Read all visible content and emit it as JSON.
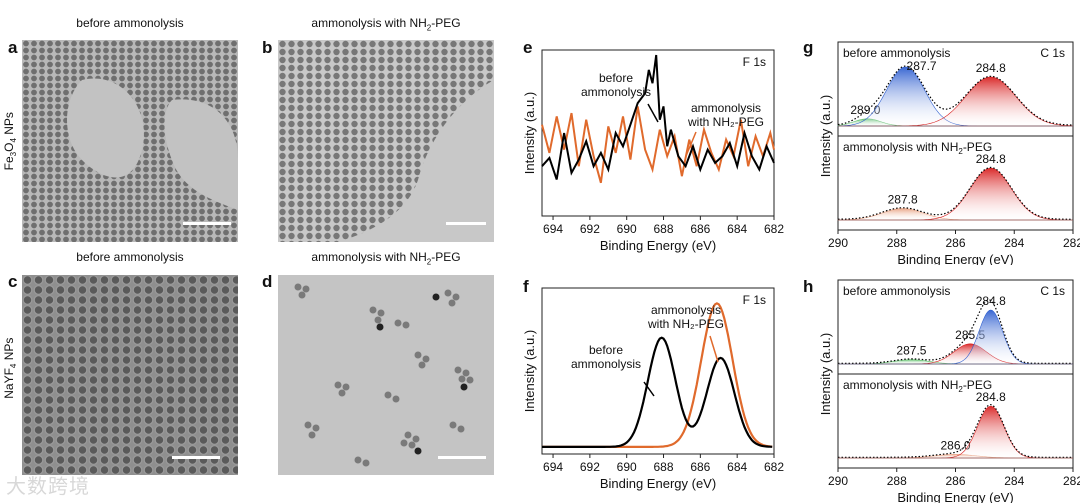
{
  "panels": {
    "a": {
      "letter": "a",
      "title": "before ammonolysis"
    },
    "b": {
      "letter": "b",
      "title_pre": "ammonolysis with NH",
      "title_sub": "2",
      "title_post": "-PEG"
    },
    "c": {
      "letter": "c",
      "title": "before ammonolysis"
    },
    "d": {
      "letter": "d",
      "title_pre": "ammonolysis with NH",
      "title_sub": "2",
      "title_post": "-PEG"
    },
    "e": {
      "letter": "e"
    },
    "f": {
      "letter": "f"
    },
    "g": {
      "letter": "g"
    },
    "h": {
      "letter": "h"
    }
  },
  "row_labels": {
    "top": {
      "pre": "Fe",
      "sub1": "3",
      "mid": "O",
      "sub2": "4",
      "post": " NPs"
    },
    "bottom": {
      "pre": "NaYF",
      "sub": "4",
      "post": " NPs"
    }
  },
  "watermark": "大数跨境",
  "chart_data": [
    {
      "id": "e",
      "type": "line",
      "title": "F 1s",
      "xlabel": "Binding Energy (eV)",
      "ylabel": "Intensity (a.u.)",
      "xlim": [
        694.6,
        682
      ],
      "x_ticks": [
        694,
        692,
        690,
        688,
        686,
        684,
        682
      ],
      "annotations": [
        {
          "text": [
            "before",
            "ammonolysis"
          ]
        },
        {
          "text": [
            "ammonolysis",
            "with NH₂-PEG"
          ]
        }
      ],
      "series": [
        {
          "color": "#000000",
          "x": [
            694.6,
            694.2,
            693.8,
            693.4,
            693.0,
            692.6,
            692.2,
            691.8,
            691.4,
            691.0,
            690.6,
            690.2,
            689.8,
            689.4,
            689.0,
            688.8,
            688.6,
            688.4,
            688.2,
            688.0,
            687.8,
            687.6,
            687.2,
            686.8,
            686.4,
            686.0,
            685.6,
            685.2,
            684.8,
            684.4,
            684.0,
            683.6,
            683.2,
            682.8,
            682.4,
            682.0
          ],
          "y": [
            0.3,
            0.35,
            0.22,
            0.5,
            0.26,
            0.34,
            0.45,
            0.3,
            0.38,
            0.28,
            0.5,
            0.42,
            0.55,
            0.68,
            0.74,
            0.88,
            0.8,
            0.97,
            0.58,
            0.66,
            0.42,
            0.52,
            0.36,
            0.3,
            0.42,
            0.28,
            0.4,
            0.32,
            0.36,
            0.44,
            0.3,
            0.5,
            0.36,
            0.28,
            0.42,
            0.32
          ]
        },
        {
          "color": "#e06a2c",
          "x": [
            694.6,
            694.2,
            693.8,
            693.4,
            693.0,
            692.6,
            692.2,
            691.8,
            691.4,
            691.0,
            690.6,
            690.2,
            689.8,
            689.4,
            689.0,
            688.6,
            688.2,
            687.8,
            687.4,
            687.0,
            686.6,
            686.2,
            685.8,
            685.4,
            685.0,
            684.6,
            684.2,
            683.8,
            683.4,
            683.0,
            682.6,
            682.2,
            682.0
          ],
          "y": [
            0.55,
            0.38,
            0.6,
            0.4,
            0.62,
            0.3,
            0.58,
            0.36,
            0.2,
            0.54,
            0.38,
            0.6,
            0.34,
            0.66,
            0.4,
            0.28,
            0.52,
            0.36,
            0.48,
            0.24,
            0.46,
            0.3,
            0.52,
            0.38,
            0.28,
            0.46,
            0.36,
            0.58,
            0.3,
            0.48,
            0.36,
            0.5,
            0.4
          ]
        }
      ]
    },
    {
      "id": "f",
      "type": "line",
      "title": "F 1s",
      "xlabel": "Binding Energy (eV)",
      "ylabel": "Intensity (a.u.)",
      "xlim": [
        694.6,
        682
      ],
      "x_ticks": [
        694,
        692,
        690,
        688,
        686,
        684,
        682
      ],
      "annotations": [
        {
          "text": [
            "ammonolysis",
            "with NH₂-PEG"
          ]
        },
        {
          "text": [
            "before",
            "ammonolysis"
          ]
        }
      ],
      "peaks_before": [
        {
          "center": 688.1,
          "height": 0.7,
          "width": 0.75
        },
        {
          "center": 684.9,
          "height": 0.57,
          "width": 0.75
        }
      ],
      "peaks_after": [
        {
          "center": 685.1,
          "height": 0.92,
          "width": 0.85
        }
      ],
      "series": [
        {
          "color": "#000000"
        },
        {
          "color": "#e06a2c"
        }
      ]
    },
    {
      "id": "g",
      "type": "area",
      "title": "C 1s",
      "xlabel": "Binding Energy (eV)",
      "ylabel": "Intensity (a.u.)",
      "xlim": [
        290,
        282
      ],
      "x_ticks": [
        290,
        288,
        286,
        284,
        282
      ],
      "subplots": [
        {
          "label": "before ammonolysis",
          "peaks": [
            {
              "center": 289.0,
              "height": 0.1,
              "width": 0.45,
              "color": "#5fbf6a",
              "label": "289.0"
            },
            {
              "center": 287.7,
              "height": 0.82,
              "width": 0.65,
              "color": "#2f5fd0",
              "label": "287.7"
            },
            {
              "center": 284.8,
              "height": 0.68,
              "width": 0.85,
              "color": "#d82020",
              "label": "284.8"
            }
          ]
        },
        {
          "label_pre": "ammonolysis with NH",
          "label_sub": "2",
          "label_post": "-PEG",
          "peaks": [
            {
              "center": 287.8,
              "height": 0.16,
              "width": 0.7,
              "color": "#e8a080",
              "label": "287.8"
            },
            {
              "center": 284.8,
              "height": 0.72,
              "width": 0.7,
              "color": "#d82020",
              "label": "284.8"
            }
          ]
        }
      ]
    },
    {
      "id": "h",
      "type": "area",
      "title": "C 1s",
      "xlabel": "Binding Energy (eV)",
      "ylabel": "Intensity (a.u.)",
      "xlim": [
        290,
        282
      ],
      "x_ticks": [
        290,
        288,
        286,
        284,
        282
      ],
      "subplots": [
        {
          "label": "before ammonolysis",
          "peaks": [
            {
              "center": 287.5,
              "height": 0.06,
              "width": 0.6,
              "color": "#5fbf6a",
              "label": "287.5"
            },
            {
              "center": 285.5,
              "height": 0.28,
              "width": 0.55,
              "color": "#d82020",
              "label": "285.5"
            },
            {
              "center": 284.8,
              "height": 0.75,
              "width": 0.4,
              "color": "#2f5fd0",
              "label": "284.8"
            }
          ]
        },
        {
          "label_pre": "ammonolysis with NH",
          "label_sub": "2",
          "label_post": "-PEG",
          "peaks": [
            {
              "center": 286.0,
              "height": 0.05,
              "width": 0.7,
              "color": "#e8a080",
              "label": "286.0"
            },
            {
              "center": 284.8,
              "height": 0.72,
              "width": 0.45,
              "color": "#d82020",
              "label": "284.8"
            }
          ]
        }
      ]
    }
  ]
}
